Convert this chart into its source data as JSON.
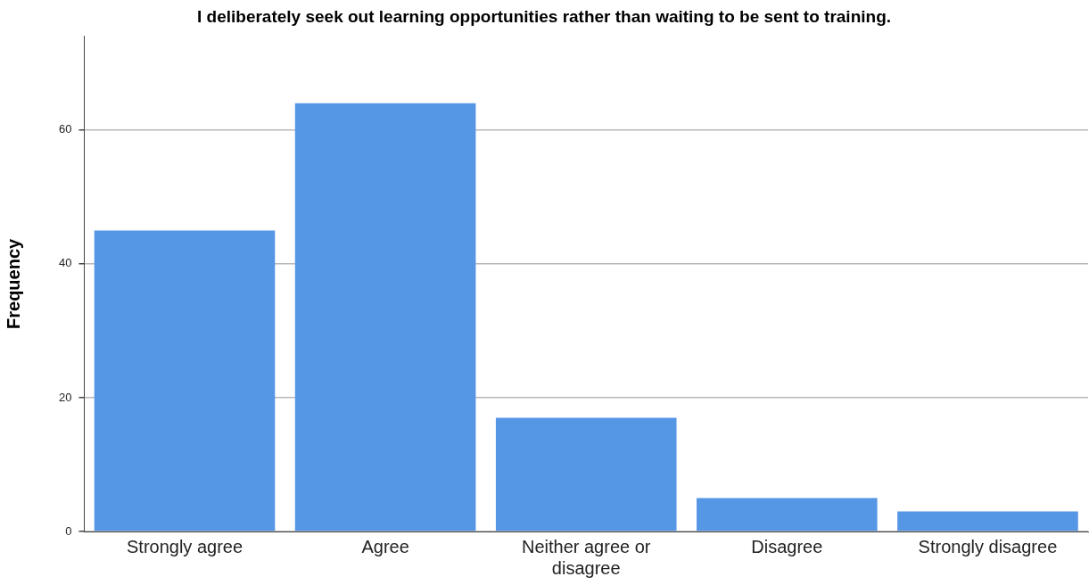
{
  "chart_data": {
    "type": "bar",
    "title": "I deliberately seek out learning opportunities rather than waiting to be sent to training.",
    "ylabel": "Frequency",
    "categories": [
      "Strongly agree",
      "Agree",
      "Neither agree or disagree",
      "Disagree",
      "Strongly disagree"
    ],
    "values": [
      45,
      64,
      17,
      5,
      3
    ],
    "color": "#5596e5",
    "ylim": [
      0,
      74
    ],
    "yticks": [
      0,
      20,
      40,
      60
    ],
    "grid": "y",
    "legend": false
  }
}
